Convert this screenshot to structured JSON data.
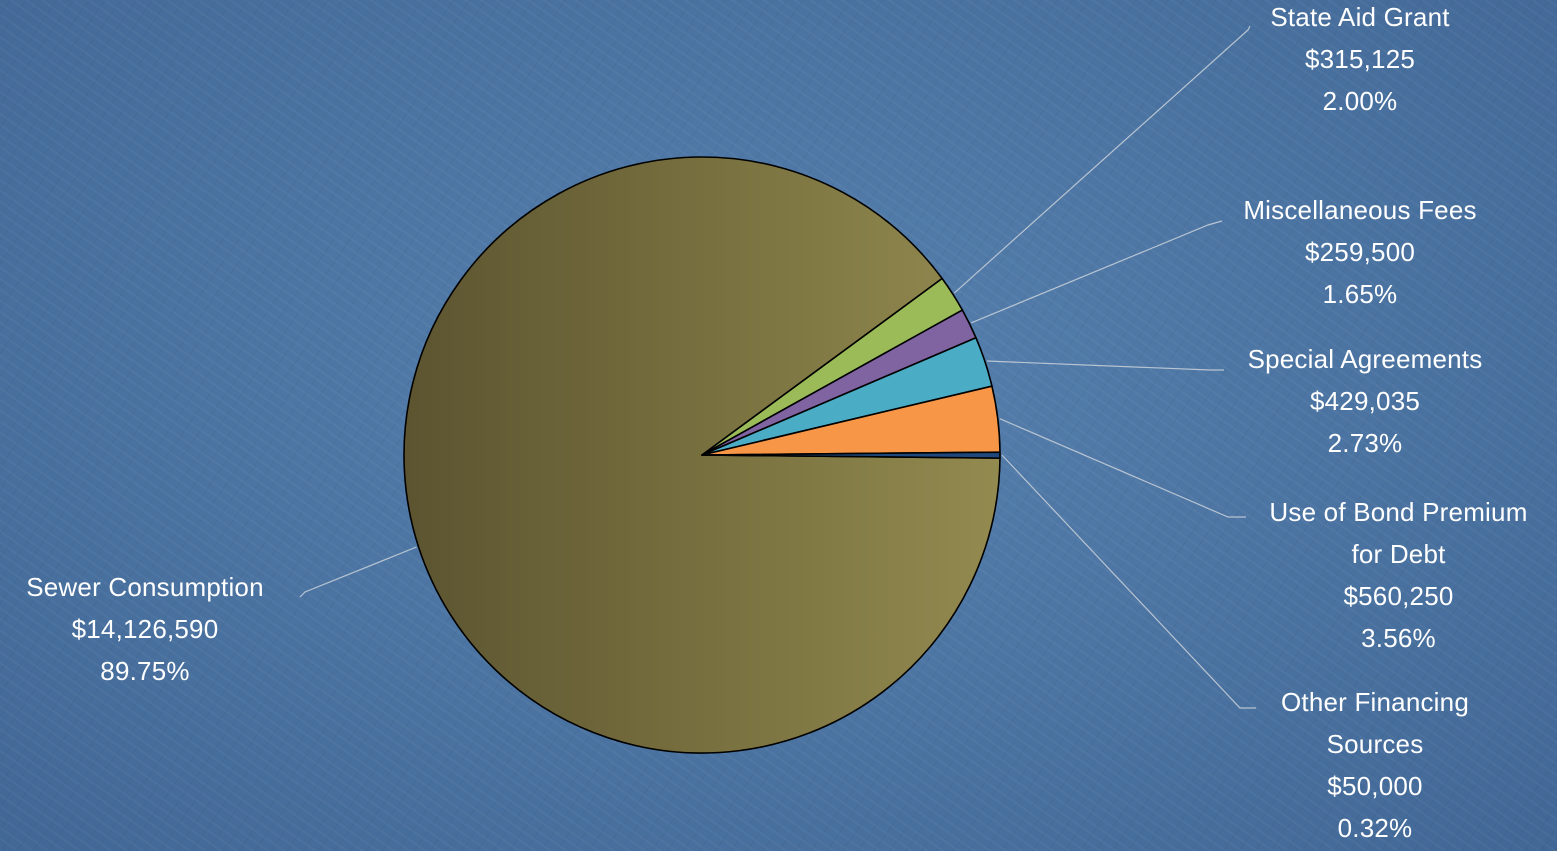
{
  "chart_data": {
    "type": "pie",
    "title": "",
    "slices": [
      {
        "label": "Sewer Consumption",
        "value": 14126590,
        "value_text": "$14,126,590",
        "percent": 89.75,
        "percent_text": "89.75%",
        "color": "#847b44"
      },
      {
        "label": "State Aid Grant",
        "value": 315125,
        "value_text": "$315,125",
        "percent": 2.0,
        "percent_text": "2.00%",
        "color": "#9bbb59"
      },
      {
        "label": "Miscellaneous Fees",
        "value": 259500,
        "value_text": "$259,500",
        "percent": 1.65,
        "percent_text": "1.65%",
        "color": "#8064a2"
      },
      {
        "label": "Special Agreements",
        "value": 429035,
        "value_text": "$429,035",
        "percent": 2.73,
        "percent_text": "2.73%",
        "color": "#4bacc6"
      },
      {
        "label_lines": [
          "Use of Bond Premium",
          "for Debt"
        ],
        "value": 560250,
        "value_text": "$560,250",
        "percent": 3.56,
        "percent_text": "3.56%",
        "color": "#f79646"
      },
      {
        "label_lines": [
          "Other Financing",
          "Sources"
        ],
        "value": 50000,
        "value_text": "$50,000",
        "percent": 0.32,
        "percent_text": "0.32%",
        "color": "#1f497d"
      }
    ]
  },
  "colors": {
    "background": "#4a72a0",
    "leader_line": "#b8c4d2",
    "slice_outline": "#000000",
    "label_text": "#ffffff"
  }
}
